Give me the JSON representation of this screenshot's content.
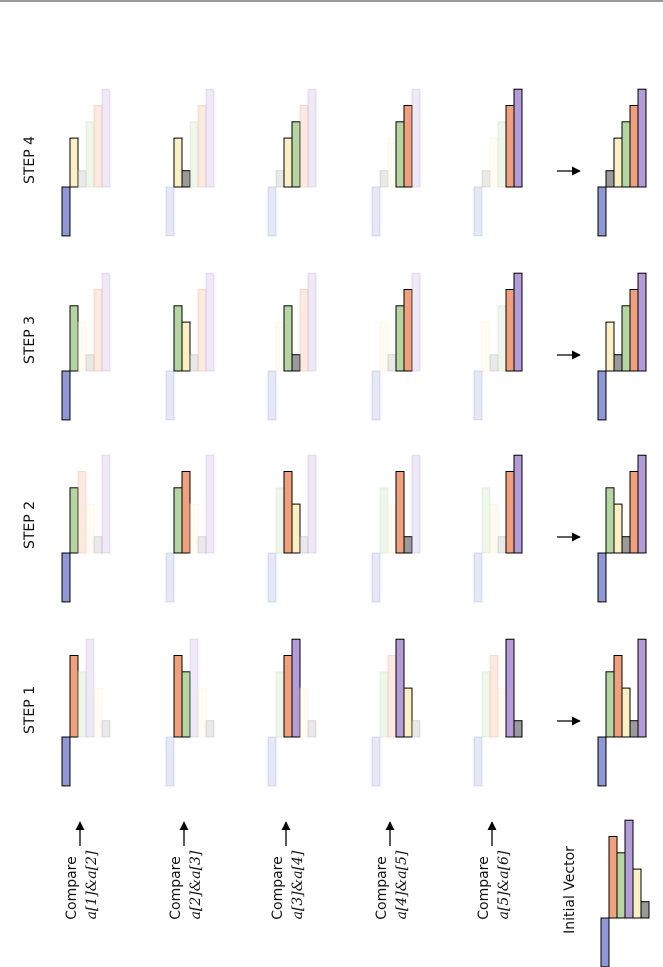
{
  "elements": [
    {
      "value": -3,
      "color": "#8f97d6"
    },
    {
      "value": 5,
      "color": "#f0a07c"
    },
    {
      "value": 4,
      "color": "#b5d6a2"
    },
    {
      "value": 6,
      "color": "#b49cd8"
    },
    {
      "value": 3,
      "color": "#fbefc4"
    },
    {
      "value": 1,
      "color": "#9a9a9a"
    }
  ],
  "compare_labels": [
    {
      "word": "Compare",
      "pair": "a[1]&a[2]"
    },
    {
      "word": "Compare",
      "pair": "a[2]&a[3]"
    },
    {
      "word": "Compare",
      "pair": "a[3]&a[4]"
    },
    {
      "word": "Compare",
      "pair": "a[4]&a[5]"
    },
    {
      "word": "Compare",
      "pair": "a[5]&a[6]"
    }
  ],
  "initial": {
    "label": "Initial Vector",
    "order": [
      0,
      1,
      2,
      3,
      4,
      5
    ]
  },
  "steps": [
    {
      "label": "STEP 1",
      "cells": [
        {
          "order": [
            0,
            1,
            2,
            3,
            4,
            5
          ],
          "highlight": [
            0,
            1
          ]
        },
        {
          "order": [
            0,
            1,
            2,
            3,
            4,
            5
          ],
          "highlight": [
            1,
            2
          ]
        },
        {
          "order": [
            0,
            2,
            1,
            3,
            4,
            5
          ],
          "highlight": [
            2,
            3
          ]
        },
        {
          "order": [
            0,
            2,
            1,
            3,
            4,
            5
          ],
          "highlight": [
            3,
            4
          ]
        },
        {
          "order": [
            0,
            2,
            1,
            4,
            3,
            5
          ],
          "highlight": [
            4,
            5
          ]
        }
      ],
      "result": [
        0,
        2,
        1,
        4,
        5,
        3
      ]
    },
    {
      "label": "STEP 2",
      "cells": [
        {
          "order": [
            0,
            2,
            1,
            4,
            5,
            3
          ],
          "highlight": [
            0,
            1
          ]
        },
        {
          "order": [
            0,
            2,
            1,
            4,
            5,
            3
          ],
          "highlight": [
            1,
            2
          ]
        },
        {
          "order": [
            0,
            2,
            1,
            4,
            5,
            3
          ],
          "highlight": [
            2,
            3
          ]
        },
        {
          "order": [
            0,
            2,
            4,
            1,
            5,
            3
          ],
          "highlight": [
            3,
            4
          ]
        },
        {
          "order": [
            0,
            2,
            4,
            5,
            1,
            3
          ],
          "highlight": [
            4,
            5
          ]
        }
      ],
      "result": [
        0,
        2,
        4,
        5,
        1,
        3
      ]
    },
    {
      "label": "STEP 3",
      "cells": [
        {
          "order": [
            0,
            2,
            4,
            5,
            1,
            3
          ],
          "highlight": [
            0,
            1
          ]
        },
        {
          "order": [
            0,
            2,
            4,
            5,
            1,
            3
          ],
          "highlight": [
            1,
            2
          ]
        },
        {
          "order": [
            0,
            4,
            2,
            5,
            1,
            3
          ],
          "highlight": [
            2,
            3
          ]
        },
        {
          "order": [
            0,
            4,
            5,
            2,
            1,
            3
          ],
          "highlight": [
            3,
            4
          ]
        },
        {
          "order": [
            0,
            4,
            5,
            2,
            1,
            3
          ],
          "highlight": [
            4,
            5
          ]
        }
      ],
      "result": [
        0,
        4,
        5,
        2,
        1,
        3
      ]
    },
    {
      "label": "STEP 4",
      "cells": [
        {
          "order": [
            0,
            4,
            5,
            2,
            1,
            3
          ],
          "highlight": [
            0,
            1
          ]
        },
        {
          "order": [
            0,
            4,
            5,
            2,
            1,
            3
          ],
          "highlight": [
            1,
            2
          ]
        },
        {
          "order": [
            0,
            5,
            4,
            2,
            1,
            3
          ],
          "highlight": [
            2,
            3
          ]
        },
        {
          "order": [
            0,
            5,
            4,
            2,
            1,
            3
          ],
          "highlight": [
            3,
            4
          ]
        },
        {
          "order": [
            0,
            5,
            4,
            2,
            1,
            3
          ],
          "highlight": [
            4,
            5
          ]
        }
      ],
      "result": [
        0,
        5,
        4,
        2,
        1,
        3
      ]
    }
  ]
}
